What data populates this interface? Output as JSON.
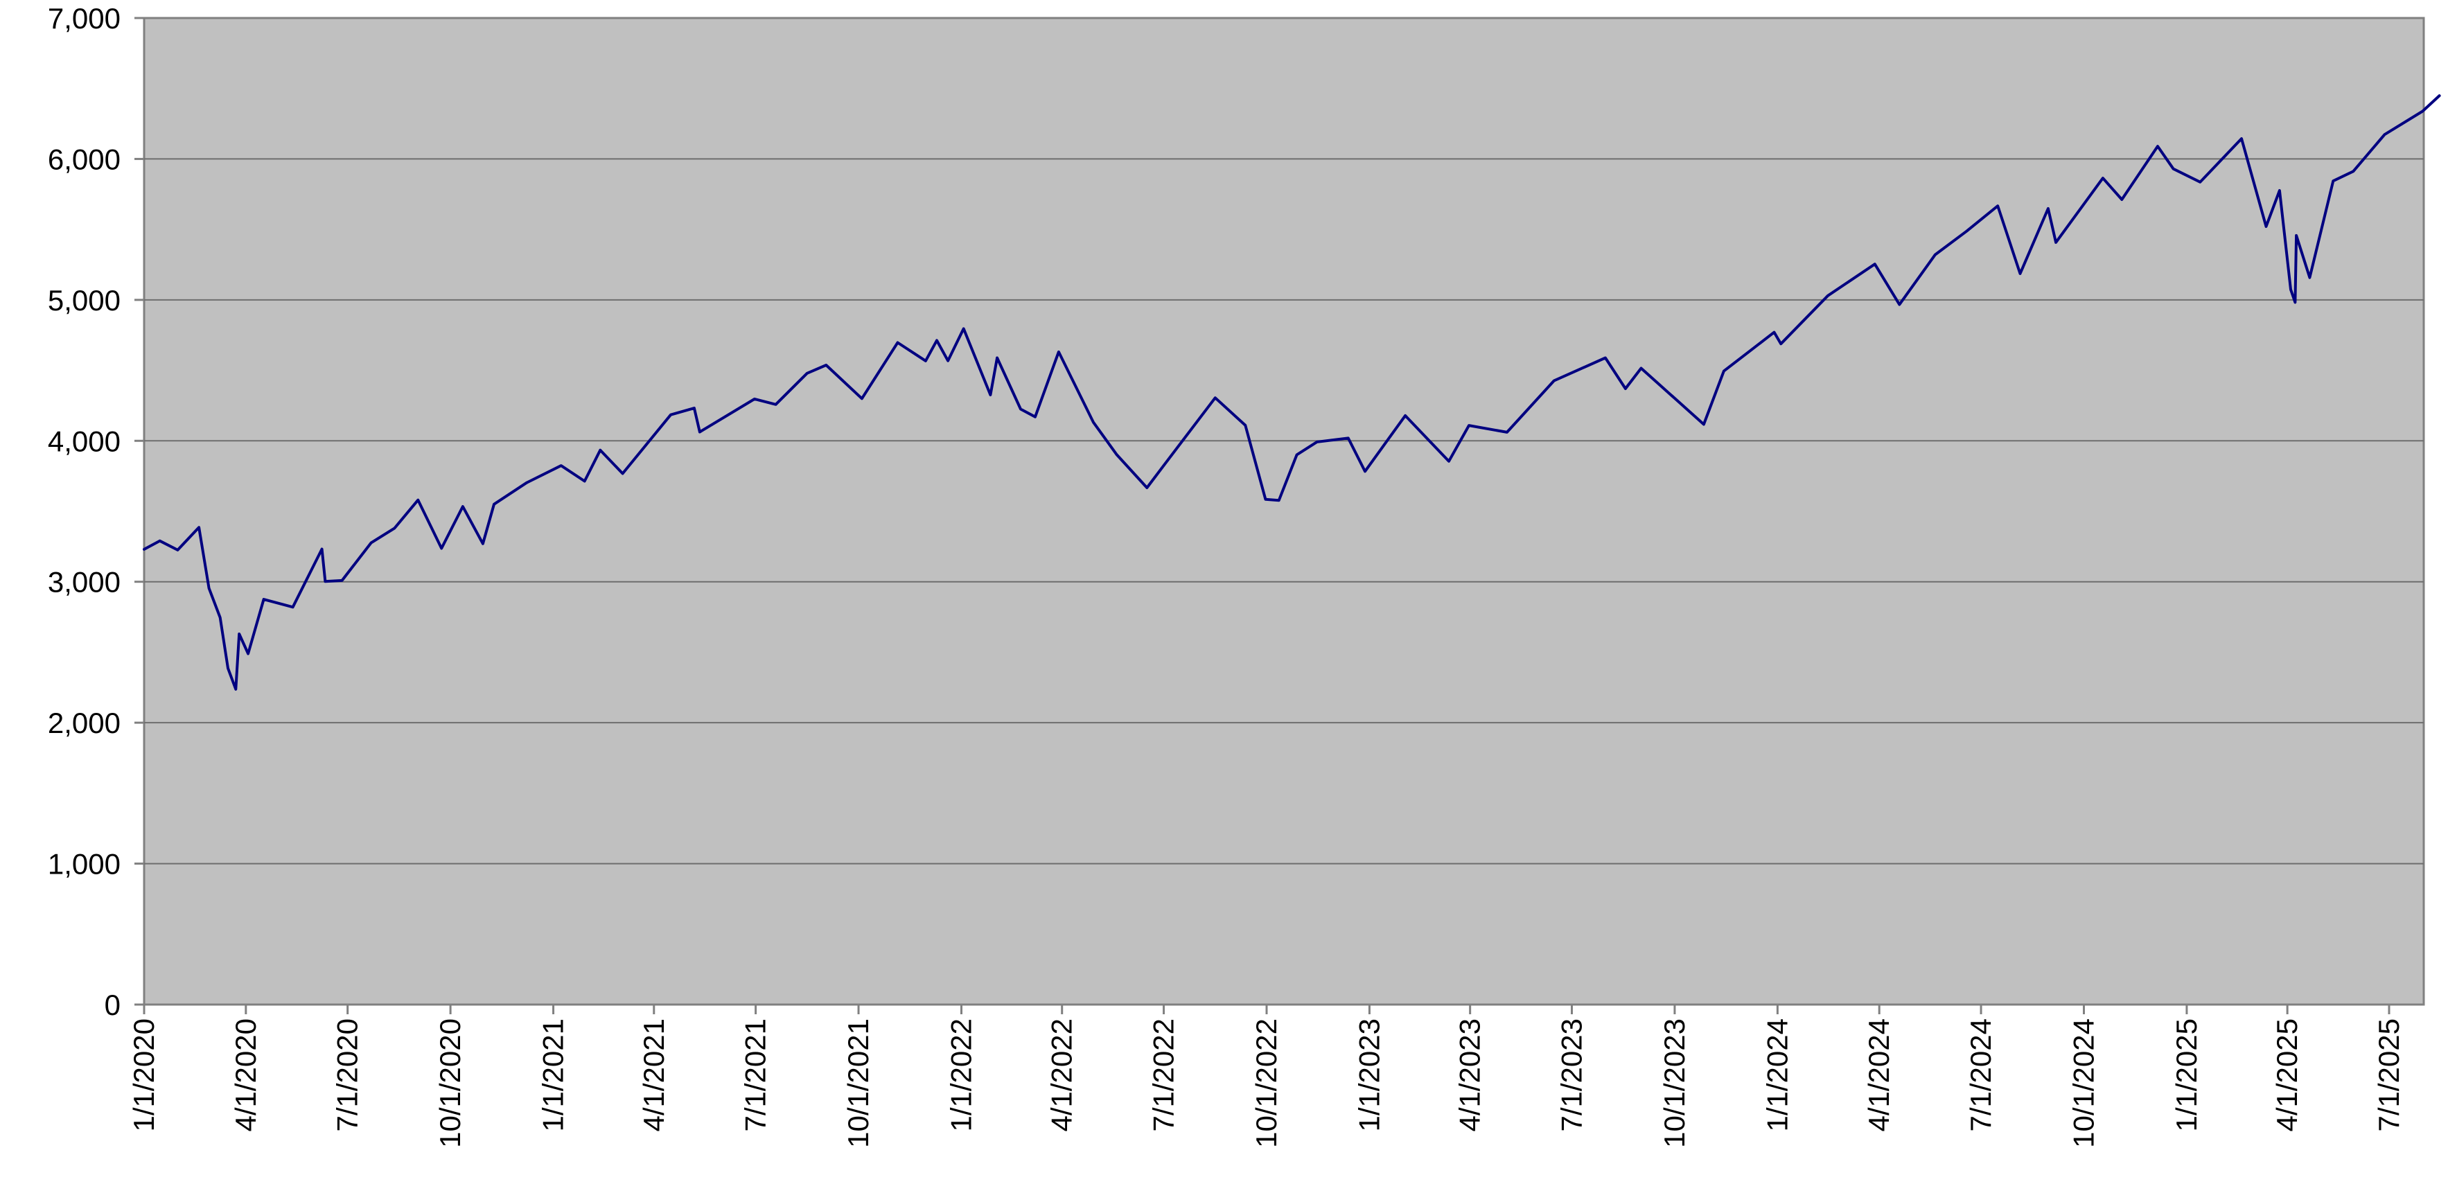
{
  "chart_data": {
    "type": "line",
    "title": "",
    "xlabel": "",
    "ylabel": "",
    "x_tick_labels": [
      "1/1/2020",
      "4/1/2020",
      "7/1/2020",
      "10/1/2020",
      "1/1/2021",
      "4/1/2021",
      "7/1/2021",
      "10/1/2021",
      "1/1/2022",
      "4/1/2022",
      "7/1/2022",
      "10/1/2022",
      "1/1/2023",
      "4/1/2023",
      "7/1/2023",
      "10/1/2023",
      "1/1/2024",
      "4/1/2024",
      "7/1/2024",
      "10/1/2024",
      "1/1/2025",
      "4/1/2025",
      "7/1/2025"
    ],
    "y_tick_labels": [
      "0",
      "1,000",
      "2,000",
      "3,000",
      "4,000",
      "5,000",
      "6,000",
      "7,000"
    ],
    "ylim": [
      0,
      7000
    ],
    "xlim": [
      "2020-01-01",
      "2025-08-01"
    ],
    "grid": true,
    "legend": "none",
    "colors": {
      "plot_background": "#c0c0c0",
      "line": "#000080",
      "gridline": "#6e6e6e",
      "axis": "#808080"
    },
    "series": [
      {
        "values": [
          [
            "2020-01-01",
            3230
          ],
          [
            "2020-01-15",
            3290
          ],
          [
            "2020-01-31",
            3225
          ],
          [
            "2020-02-19",
            3386
          ],
          [
            "2020-02-28",
            2954
          ],
          [
            "2020-03-09",
            2746
          ],
          [
            "2020-03-16",
            2386
          ],
          [
            "2020-03-23",
            2237
          ],
          [
            "2020-03-26",
            2630
          ],
          [
            "2020-04-03",
            2490
          ],
          [
            "2020-04-17",
            2875
          ],
          [
            "2020-05-13",
            2820
          ],
          [
            "2020-06-08",
            3232
          ],
          [
            "2020-06-11",
            3002
          ],
          [
            "2020-06-26",
            3009
          ],
          [
            "2020-07-22",
            3276
          ],
          [
            "2020-08-12",
            3380
          ],
          [
            "2020-09-02",
            3580
          ],
          [
            "2020-09-23",
            3237
          ],
          [
            "2020-10-12",
            3534
          ],
          [
            "2020-10-30",
            3270
          ],
          [
            "2020-11-09",
            3550
          ],
          [
            "2020-12-08",
            3702
          ],
          [
            "2021-01-08",
            3824
          ],
          [
            "2021-01-29",
            3714
          ],
          [
            "2021-02-12",
            3934
          ],
          [
            "2021-03-04",
            3768
          ],
          [
            "2021-04-16",
            4185
          ],
          [
            "2021-05-07",
            4232
          ],
          [
            "2021-05-12",
            4063
          ],
          [
            "2021-06-30",
            4297
          ],
          [
            "2021-07-19",
            4258
          ],
          [
            "2021-08-16",
            4479
          ],
          [
            "2021-09-02",
            4537
          ],
          [
            "2021-10-04",
            4300
          ],
          [
            "2021-11-05",
            4697
          ],
          [
            "2021-11-30",
            4567
          ],
          [
            "2021-12-10",
            4712
          ],
          [
            "2021-12-20",
            4568
          ],
          [
            "2022-01-03",
            4796
          ],
          [
            "2022-01-27",
            4326
          ],
          [
            "2022-02-02",
            4589
          ],
          [
            "2022-02-23",
            4225
          ],
          [
            "2022-03-08",
            4170
          ],
          [
            "2022-03-29",
            4631
          ],
          [
            "2022-04-29",
            4132
          ],
          [
            "2022-05-20",
            3901
          ],
          [
            "2022-06-16",
            3667
          ],
          [
            "2022-07-01",
            3825
          ],
          [
            "2022-08-16",
            4305
          ],
          [
            "2022-09-12",
            4110
          ],
          [
            "2022-09-30",
            3585
          ],
          [
            "2022-10-12",
            3577
          ],
          [
            "2022-10-28",
            3901
          ],
          [
            "2022-11-15",
            3992
          ],
          [
            "2022-12-13",
            4019
          ],
          [
            "2022-12-28",
            3783
          ],
          [
            "2023-02-02",
            4179
          ],
          [
            "2023-03-13",
            3855
          ],
          [
            "2023-03-31",
            4109
          ],
          [
            "2023-05-04",
            4061
          ],
          [
            "2023-06-15",
            4426
          ],
          [
            "2023-07-31",
            4589
          ],
          [
            "2023-08-18",
            4370
          ],
          [
            "2023-09-01",
            4515
          ],
          [
            "2023-10-27",
            4117
          ],
          [
            "2023-11-14",
            4495
          ],
          [
            "2023-12-29",
            4770
          ],
          [
            "2024-01-04",
            4688
          ],
          [
            "2024-02-15",
            5030
          ],
          [
            "2024-03-28",
            5254
          ],
          [
            "2024-04-19",
            4967
          ],
          [
            "2024-05-21",
            5321
          ],
          [
            "2024-06-18",
            5487
          ],
          [
            "2024-07-16",
            5667
          ],
          [
            "2024-08-05",
            5186
          ],
          [
            "2024-08-30",
            5648
          ],
          [
            "2024-09-06",
            5408
          ],
          [
            "2024-10-18",
            5864
          ],
          [
            "2024-11-04",
            5712
          ],
          [
            "2024-12-06",
            6090
          ],
          [
            "2024-12-20",
            5930
          ],
          [
            "2025-01-13",
            5836
          ],
          [
            "2025-02-19",
            6144
          ],
          [
            "2025-03-13",
            5521
          ],
          [
            "2025-03-25",
            5776
          ],
          [
            "2025-04-04",
            5074
          ],
          [
            "2025-04-08",
            4982
          ],
          [
            "2025-04-09",
            5457
          ],
          [
            "2025-04-21",
            5158
          ],
          [
            "2025-05-12",
            5844
          ],
          [
            "2025-05-30",
            5912
          ],
          [
            "2025-06-27",
            6173
          ],
          [
            "2025-07-31",
            6339
          ],
          [
            "2025-08-15",
            6449
          ]
        ]
      }
    ]
  }
}
